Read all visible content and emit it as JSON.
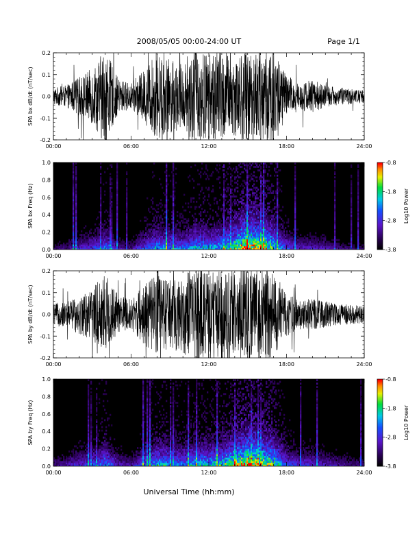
{
  "header": {
    "title": "2008/05/05  00:00-24:00 UT",
    "page": "Page 1/1"
  },
  "xlabel": "Universal Time (hh:mm)",
  "time_ticks": [
    "00:00",
    "06:00",
    "12:00",
    "18:00",
    "24:00"
  ],
  "colorbar": {
    "label": "Log10 Power",
    "ticks": [
      "-0.8",
      "-1.8",
      "-2.8",
      "-3.8"
    ],
    "range": [
      -3.8,
      -0.8
    ]
  },
  "chart_data": [
    {
      "type": "line",
      "ylabel": "SPA bx dB/dt (nT/sec)",
      "yticks": [
        "0.2",
        "0.1",
        "0.0",
        "-0.1",
        "-0.2"
      ],
      "xlim": [
        0,
        24
      ],
      "ylim": [
        -0.2,
        0.2
      ],
      "xunit": "hours UT",
      "envelope": [
        [
          0,
          0.04
        ],
        [
          1,
          0.05
        ],
        [
          2,
          0.09
        ],
        [
          3,
          0.13
        ],
        [
          4,
          0.22
        ],
        [
          5,
          0.08
        ],
        [
          6,
          0.06
        ],
        [
          7,
          0.12
        ],
        [
          8,
          0.2
        ],
        [
          9,
          0.17
        ],
        [
          10,
          0.15
        ],
        [
          11,
          0.22
        ],
        [
          12,
          0.2
        ],
        [
          13,
          0.22
        ],
        [
          14,
          0.18
        ],
        [
          15,
          0.22
        ],
        [
          16,
          0.22
        ],
        [
          17,
          0.24
        ],
        [
          18,
          0.1
        ],
        [
          19,
          0.06
        ],
        [
          20,
          0.08
        ],
        [
          21,
          0.05
        ],
        [
          22,
          0.04
        ],
        [
          23,
          0.035
        ],
        [
          24,
          0.03
        ]
      ]
    },
    {
      "type": "heatmap",
      "ylabel": "SPA bx Freq (Hz)",
      "yticks": [
        "1.0",
        "0.8",
        "0.6",
        "0.4",
        "0.2",
        "0.0"
      ],
      "xlim": [
        0,
        24
      ],
      "ylim": [
        0,
        1
      ],
      "zlim": [
        -3.8,
        -0.8
      ],
      "activity": [
        [
          0,
          0.15
        ],
        [
          1,
          0.2
        ],
        [
          2,
          0.3
        ],
        [
          3,
          0.35
        ],
        [
          4,
          0.5
        ],
        [
          5,
          0.25
        ],
        [
          6,
          0.2
        ],
        [
          7,
          0.4
        ],
        [
          8,
          0.55
        ],
        [
          9,
          0.5
        ],
        [
          10,
          0.45
        ],
        [
          11,
          0.6
        ],
        [
          12,
          0.55
        ],
        [
          13,
          0.6
        ],
        [
          14,
          0.75
        ],
        [
          15,
          0.95
        ],
        [
          16,
          0.85
        ],
        [
          17,
          0.7
        ],
        [
          18,
          0.4
        ],
        [
          19,
          0.3
        ],
        [
          20,
          0.3
        ],
        [
          21,
          0.25
        ],
        [
          22,
          0.2
        ],
        [
          23,
          0.15
        ],
        [
          24,
          0.15
        ]
      ]
    },
    {
      "type": "line",
      "ylabel": "SPA by dB/dt (nT/sec)",
      "yticks": [
        "0.2",
        "0.1",
        "0.0",
        "-0.1",
        "-0.2"
      ],
      "xlim": [
        0,
        24
      ],
      "ylim": [
        -0.2,
        0.2
      ],
      "xunit": "hours UT",
      "envelope": [
        [
          0,
          0.05
        ],
        [
          1,
          0.06
        ],
        [
          2,
          0.09
        ],
        [
          3,
          0.12
        ],
        [
          4,
          0.2
        ],
        [
          5,
          0.09
        ],
        [
          6,
          0.07
        ],
        [
          7,
          0.14
        ],
        [
          8,
          0.18
        ],
        [
          9,
          0.16
        ],
        [
          10,
          0.18
        ],
        [
          11,
          0.22
        ],
        [
          12,
          0.2
        ],
        [
          13,
          0.22
        ],
        [
          14,
          0.2
        ],
        [
          15,
          0.22
        ],
        [
          16,
          0.22
        ],
        [
          17,
          0.2
        ],
        [
          18,
          0.1
        ],
        [
          19,
          0.07
        ],
        [
          20,
          0.07
        ],
        [
          21,
          0.06
        ],
        [
          22,
          0.05
        ],
        [
          23,
          0.045
        ],
        [
          24,
          0.04
        ]
      ]
    },
    {
      "type": "heatmap",
      "ylabel": "SPA by Freq (Hz)",
      "yticks": [
        "1.0",
        "0.8",
        "0.6",
        "0.4",
        "0.2",
        "0.0"
      ],
      "xlim": [
        0,
        24
      ],
      "ylim": [
        0,
        1
      ],
      "zlim": [
        -3.8,
        -0.8
      ],
      "activity": [
        [
          0,
          0.2
        ],
        [
          1,
          0.25
        ],
        [
          2,
          0.35
        ],
        [
          3,
          0.4
        ],
        [
          4,
          0.55
        ],
        [
          5,
          0.3
        ],
        [
          6,
          0.25
        ],
        [
          7,
          0.45
        ],
        [
          8,
          0.6
        ],
        [
          9,
          0.55
        ],
        [
          10,
          0.5
        ],
        [
          11,
          0.6
        ],
        [
          12,
          0.6
        ],
        [
          13,
          0.65
        ],
        [
          14,
          0.8
        ],
        [
          15,
          0.95
        ],
        [
          16,
          0.85
        ],
        [
          17,
          0.75
        ],
        [
          18,
          0.45
        ],
        [
          19,
          0.35
        ],
        [
          20,
          0.35
        ],
        [
          21,
          0.3
        ],
        [
          22,
          0.25
        ],
        [
          23,
          0.2
        ],
        [
          24,
          0.2
        ]
      ]
    }
  ]
}
